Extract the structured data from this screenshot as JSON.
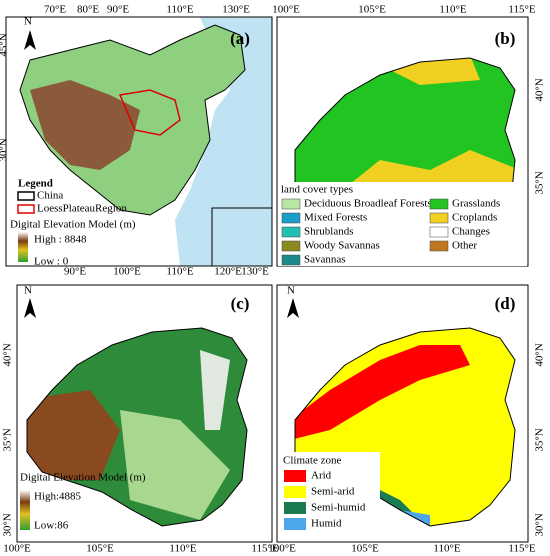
{
  "panels": [
    {
      "label": "(a)",
      "north": "N",
      "top_ticks": [
        "70°E",
        "80°E",
        "90°E",
        "110°E",
        "130°E"
      ],
      "bottom_ticks": [
        "90°E",
        "100°E",
        "110°E",
        "120°E",
        "130°E"
      ],
      "left_ticks": [
        "45°N",
        "30°N"
      ],
      "legend": {
        "title": "Legend",
        "china": "China",
        "loess": "LoessPlateauRegion",
        "dem_title": "Digital Elevation Model (m)",
        "high": "High : 8848",
        "low": "Low : 0"
      }
    },
    {
      "label": "(b)",
      "top_ticks": [
        "100°E",
        "105°E",
        "110°E",
        "115°E"
      ],
      "right_ticks": [
        "40°N",
        "35°N"
      ],
      "legend": {
        "title": "land cover types",
        "items": [
          {
            "name": "Deciduous Broadleaf Forests",
            "color": "#b8e6a4"
          },
          {
            "name": "Grasslands",
            "color": "#22c422"
          },
          {
            "name": "Mixed Forests",
            "color": "#1aa0c8"
          },
          {
            "name": "Croplands",
            "color": "#f0d020"
          },
          {
            "name": "Shrublands",
            "color": "#22c0b0"
          },
          {
            "name": "Changes",
            "color": "#ffffff"
          },
          {
            "name": "Woody Savannas",
            "color": "#8a8a20"
          },
          {
            "name": "Other",
            "color": "#c07820"
          },
          {
            "name": "Savannas",
            "color": "#1a8a8a"
          }
        ]
      }
    },
    {
      "label": "(c)",
      "north": "N",
      "left_ticks": [
        "40°N",
        "35°N",
        "30°N"
      ],
      "bottom_ticks": [
        "100°E",
        "105°E",
        "110°E",
        "115°E"
      ],
      "legend": {
        "dem_title": "Digital Elevation Model (m)",
        "high": "High:4885",
        "low": "Low:86"
      }
    },
    {
      "label": "(d)",
      "north": "N",
      "right_ticks": [
        "40°N",
        "35°N",
        "30°N"
      ],
      "bottom_ticks": [
        "100°E",
        "105°E",
        "110°E",
        "115°E"
      ],
      "legend": {
        "title": "Climate zone",
        "items": [
          {
            "name": "Arid",
            "color": "#ff0000"
          },
          {
            "name": "Semi-arid",
            "color": "#ffff00"
          },
          {
            "name": "Semi-humid",
            "color": "#1a7a50"
          },
          {
            "name": "Humid",
            "color": "#4da6e8"
          }
        ]
      }
    }
  ]
}
